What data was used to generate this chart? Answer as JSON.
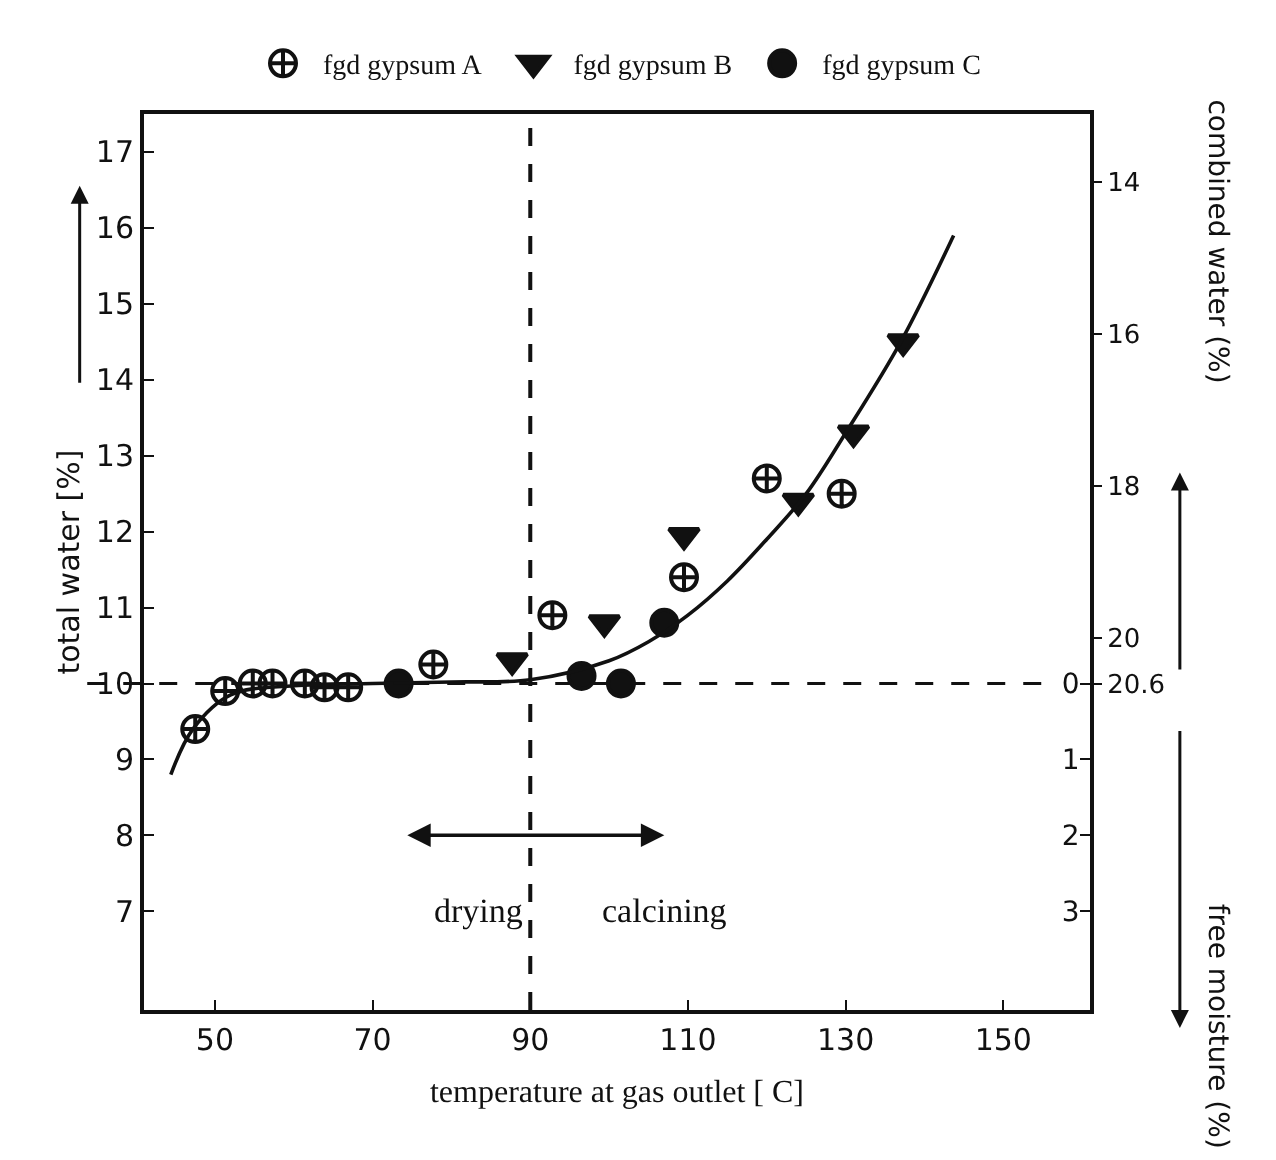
{
  "chart_data": {
    "type": "scatter",
    "xlabel": "temperature at gas outlet [ C]",
    "ylabel": "total water [%]",
    "y2label": "combined water (%)",
    "y3label": "free moisture (%)",
    "xlim": [
      41,
      161
    ],
    "xticks": [
      50,
      70,
      90,
      110,
      130,
      150
    ],
    "ylim": [
      5.7,
      17.5
    ],
    "yticks": [
      7,
      8,
      9,
      10,
      11,
      12,
      13,
      14,
      15,
      16,
      17
    ],
    "y2lim": [
      24.9,
      13.1
    ],
    "y2ticks": [
      14,
      16,
      18,
      20,
      20.6
    ],
    "y3lim": [
      4.3,
      -7.5
    ],
    "y3ticks": [
      0,
      1,
      2,
      3
    ],
    "legend": "top",
    "series": [
      {
        "name": "fgd gypsum A",
        "marker": "cross",
        "color": "#111111",
        "x": [
          47.5,
          51.3,
          54.8,
          57.3,
          61.4,
          63.9,
          66.9,
          77.7,
          92.8,
          109.5,
          120,
          129.5
        ],
        "values": [
          9.4,
          9.9,
          10.0,
          10.0,
          10.0,
          9.95,
          9.95,
          10.25,
          10.9,
          11.4,
          12.7,
          12.5
        ]
      },
      {
        "name": "fgd gypsum B",
        "marker": "triangle-down",
        "color": "#111111",
        "x": [
          87.7,
          99.4,
          109.5,
          124,
          131,
          137.3
        ],
        "values": [
          10.3,
          10.8,
          11.95,
          12.4,
          13.3,
          14.5
        ]
      },
      {
        "name": "fgd gypsum C",
        "marker": "circle",
        "color": "#111111",
        "x": [
          73.3,
          96.5,
          101.5,
          107
        ],
        "values": [
          10.0,
          10.1,
          10.0,
          10.8
        ]
      },
      {
        "type": "line",
        "color": "#111111",
        "x": [
          44.4,
          47.2,
          52,
          60,
          70,
          80,
          90,
          100,
          105,
          110,
          115,
          120,
          125,
          130,
          137,
          143.7
        ],
        "values": [
          8.8,
          9.4,
          9.85,
          9.97,
          10.0,
          10.02,
          10.05,
          10.3,
          10.55,
          10.9,
          11.35,
          11.9,
          12.5,
          13.3,
          14.5,
          15.9
        ]
      }
    ],
    "ref_lines": [
      {
        "axis": "x",
        "value": 90,
        "line_style": "dashed"
      },
      {
        "axis": "y",
        "value": 10,
        "line_style": "dashed"
      }
    ],
    "annotations": [
      "drying",
      "calcining"
    ]
  }
}
